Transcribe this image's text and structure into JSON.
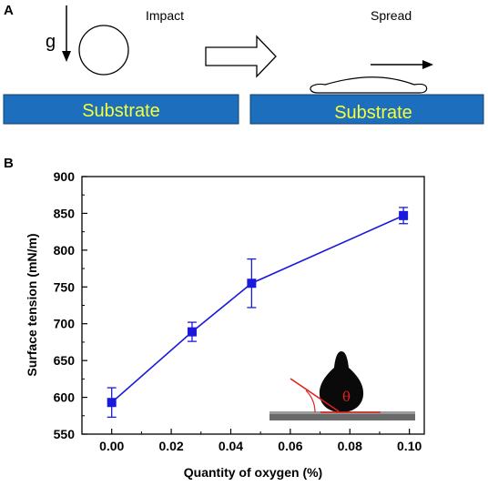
{
  "panel_a": {
    "letter": "A",
    "g_label": "g",
    "impact_label": "Impact",
    "spread_label": "Spread",
    "substrate_left": "Substrate",
    "substrate_right": "Substrate"
  },
  "panel_b": {
    "letter": "B",
    "inset_symbol": "θ"
  },
  "colors": {
    "substrate_fill": "#1d6fbd",
    "substrate_text": "#f5ff3a",
    "series": "#1a1adc",
    "contact_angle": "#e0201a"
  },
  "chart_data": {
    "type": "line",
    "title": "",
    "xlabel": "Quantity of oxygen (%)",
    "ylabel": "Surface tension (mN/m)",
    "xlim": [
      -0.01,
      0.105
    ],
    "ylim": [
      550,
      900
    ],
    "xticks": [
      "0.00",
      "0.02",
      "0.04",
      "0.06",
      "0.08",
      "0.10"
    ],
    "yticks": [
      "550",
      "600",
      "650",
      "700",
      "750",
      "800",
      "850",
      "900"
    ],
    "grid": false,
    "series": [
      {
        "name": "",
        "x": [
          0.0,
          0.027,
          0.047,
          0.098
        ],
        "y": [
          593,
          689,
          755,
          847
        ],
        "yerr": [
          20,
          13,
          33,
          11
        ]
      }
    ]
  }
}
